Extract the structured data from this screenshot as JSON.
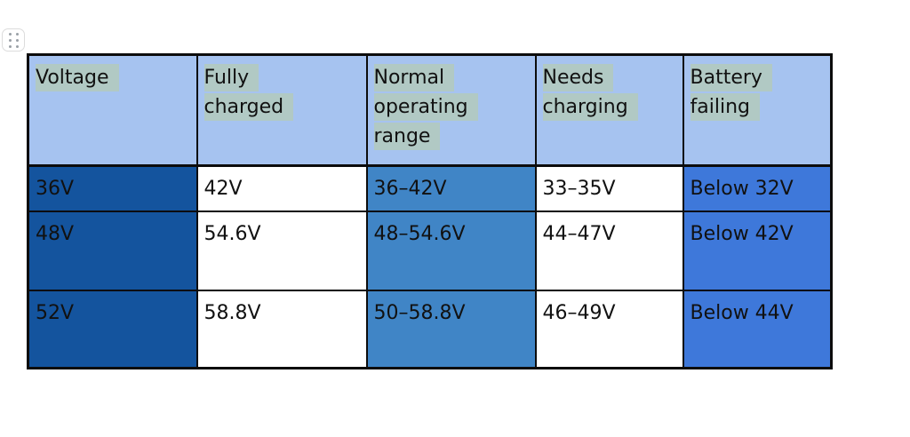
{
  "page": {
    "background": "#ffffff"
  },
  "drag_handle": {
    "icon": "six-dot-grid-drag-handle",
    "dot_color": "#9aa0a6",
    "border_color": "#dcdcdc"
  },
  "colors": {
    "header_bg": "#a6c3f0",
    "text_highlight": "#b1c9c4",
    "voltage_col_bg": "#14549e",
    "range_col_bg": "#4085c6",
    "failing_col_bg": "#3e78da",
    "white_cell_bg": "#ffffff",
    "border": "#0c0c0c",
    "text": "#111111"
  },
  "table": {
    "headers": [
      {
        "label": "Voltage"
      },
      {
        "label": "Fully\ncharged"
      },
      {
        "label": "Normal\noperating\nrange"
      },
      {
        "label": "Needs\ncharging"
      },
      {
        "label": "Battery\nfailing"
      }
    ],
    "rows": [
      {
        "cells": [
          "36V",
          "42V",
          "36–42V",
          "33–35V",
          "Below 32V"
        ]
      },
      {
        "cells": [
          "48V",
          "54.6V",
          "48–54.6V",
          "44–47V",
          "Below 42V"
        ]
      },
      {
        "cells": [
          "52V",
          "58.8V",
          "50–58.8V",
          "46–49V",
          "Below 44V"
        ]
      }
    ]
  }
}
